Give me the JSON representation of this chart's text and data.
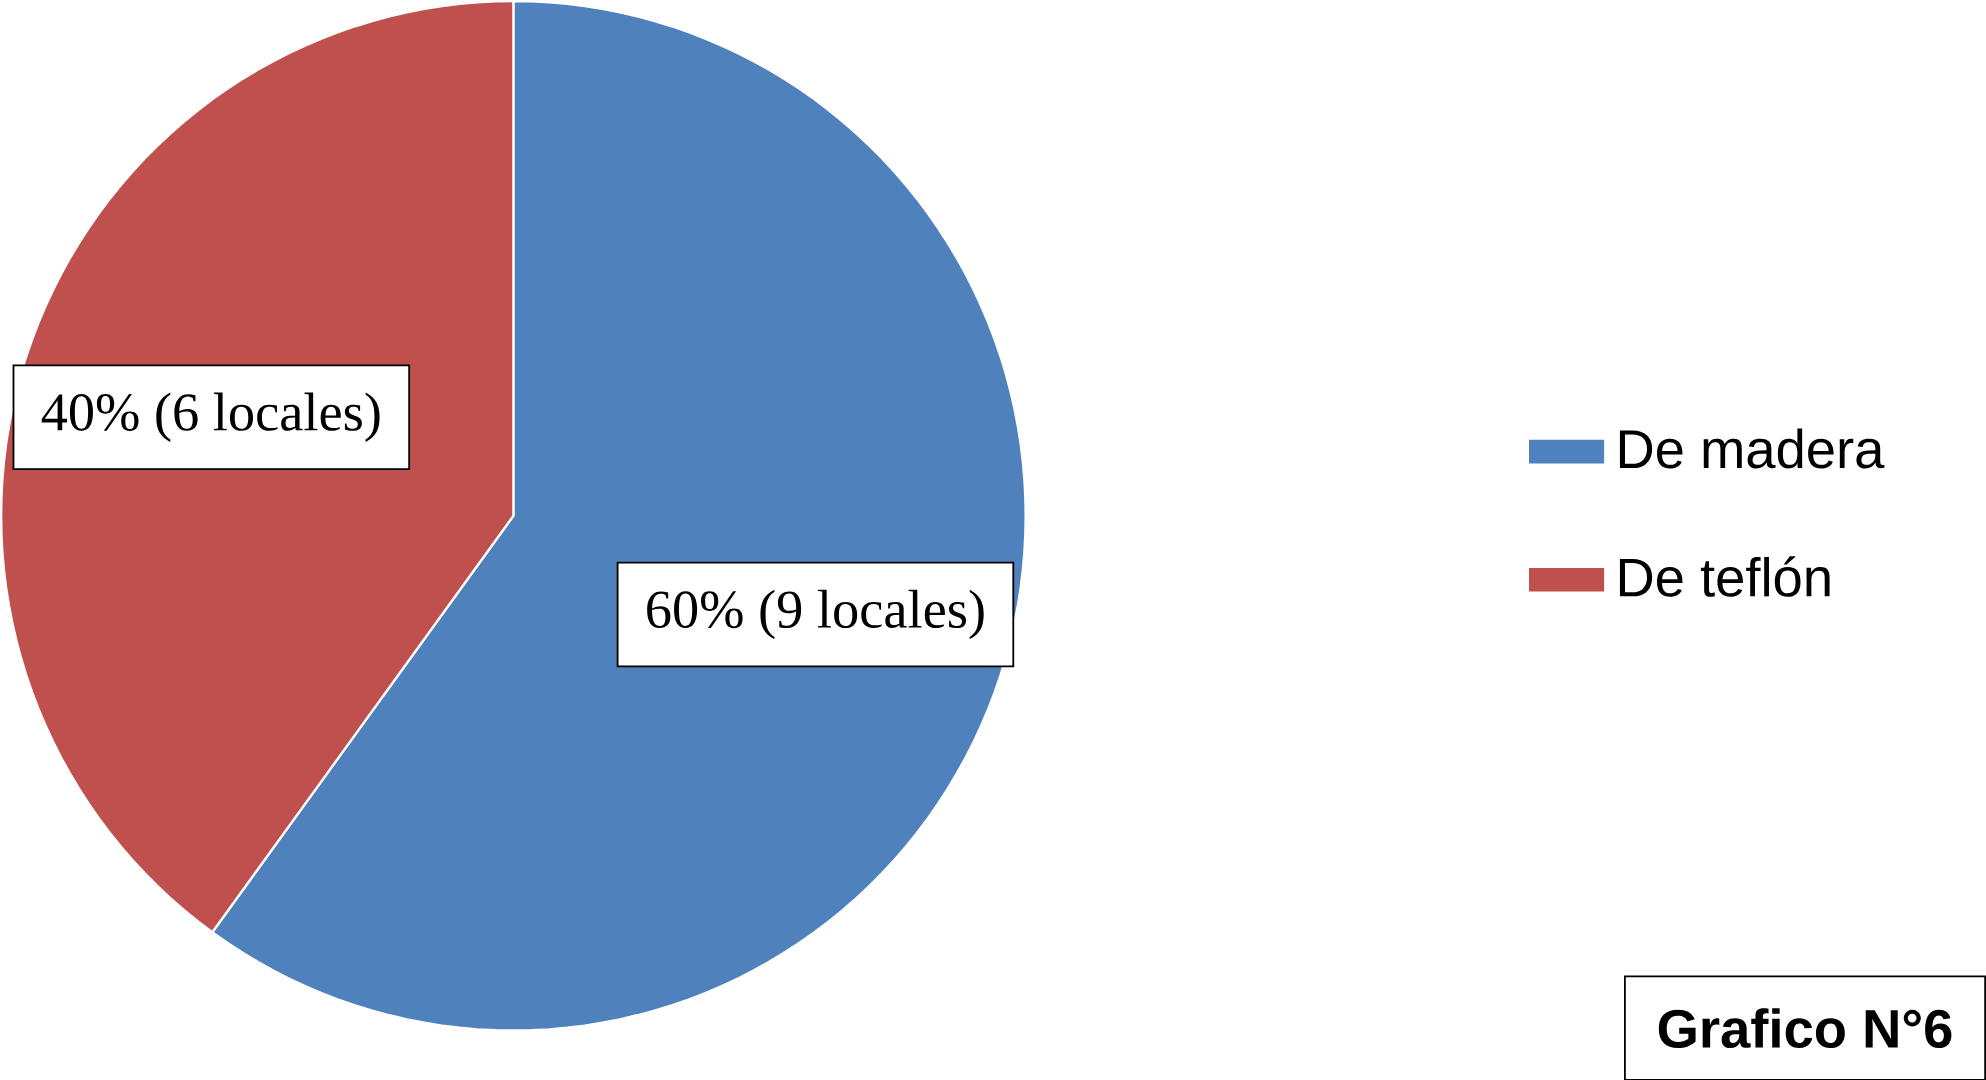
{
  "chart_data": {
    "type": "pie",
    "categories": [
      "De madera",
      "De teflón"
    ],
    "values": [
      60,
      40
    ],
    "colors": [
      "#4f81bd",
      "#c0504d"
    ],
    "value_labels": [
      "60% (9 locales)",
      "40% (6 locales)"
    ],
    "legend": "right",
    "annotations": [
      "Grafico N°6"
    ]
  }
}
